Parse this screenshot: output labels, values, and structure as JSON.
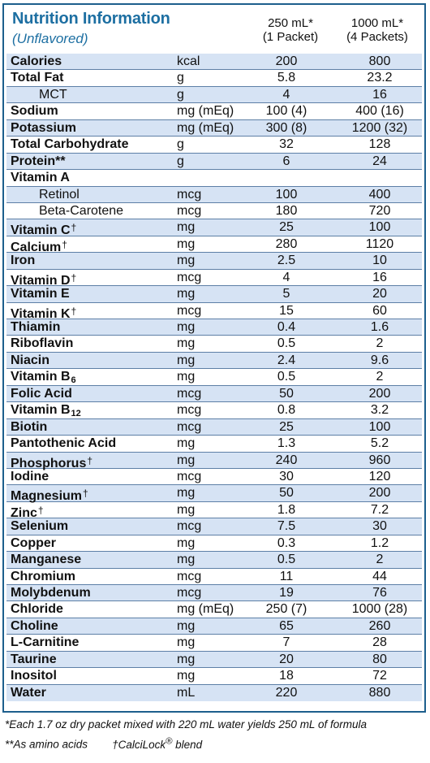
{
  "header": {
    "title": "Nutrition Information",
    "subtitle": "(Unflavored)",
    "col1_line1": "250 mL*",
    "col1_line2": "(1 Packet)",
    "col2_line1": "1000 mL*",
    "col2_line2": "(4 Packets)"
  },
  "rows": [
    {
      "name": "Calories",
      "unit": "kcal",
      "v1": "200",
      "v2": "800"
    },
    {
      "name": "Total Fat",
      "unit": "g",
      "v1": "5.8",
      "v2": "23.2"
    },
    {
      "name": "MCT",
      "unit": "g",
      "v1": "4",
      "v2": "16",
      "indent": true
    },
    {
      "name": "Sodium",
      "unit": "mg (mEq)",
      "v1": "100 (4)",
      "v2": "400 (16)"
    },
    {
      "name": "Potassium",
      "unit": "mg (mEq)",
      "v1": "300 (8)",
      "v2": "1200 (32)"
    },
    {
      "name": "Total Carbohydrate",
      "unit": "g",
      "v1": "32",
      "v2": "128"
    },
    {
      "name": "Protein**",
      "unit": "g",
      "v1": "6",
      "v2": "24"
    },
    {
      "name": "Vitamin A",
      "unit": "",
      "v1": "",
      "v2": ""
    },
    {
      "name": "Retinol",
      "unit": "mcg",
      "v1": "100",
      "v2": "400",
      "indent": true
    },
    {
      "name": "Beta-Carotene",
      "unit": "mcg",
      "v1": "180",
      "v2": "720",
      "indent": true
    },
    {
      "name": "Vitamin C",
      "dagger": "†",
      "unit": "mg",
      "v1": "25",
      "v2": "100"
    },
    {
      "name": "Calcium",
      "dagger": "†",
      "unit": "mg",
      "v1": "280",
      "v2": "1120"
    },
    {
      "name": "Iron",
      "unit": "mg",
      "v1": "2.5",
      "v2": "10"
    },
    {
      "name": "Vitamin D",
      "dagger": "†",
      "unit": "mcg",
      "v1": "4",
      "v2": "16"
    },
    {
      "name": "Vitamin E",
      "unit": "mg",
      "v1": "5",
      "v2": "20"
    },
    {
      "name": "Vitamin K",
      "dagger": "†",
      "unit": "mcg",
      "v1": "15",
      "v2": "60"
    },
    {
      "name": "Thiamin",
      "unit": "mg",
      "v1": "0.4",
      "v2": "1.6"
    },
    {
      "name": "Riboflavin",
      "unit": "mg",
      "v1": "0.5",
      "v2": "2"
    },
    {
      "name": "Niacin",
      "unit": "mg",
      "v1": "2.4",
      "v2": "9.6"
    },
    {
      "name": "Vitamin B",
      "sub": "6",
      "unit": "mg",
      "v1": "0.5",
      "v2": "2"
    },
    {
      "name": "Folic Acid",
      "unit": "mcg",
      "v1": "50",
      "v2": "200"
    },
    {
      "name": "Vitamin B",
      "sub": "12",
      "unit": "mcg",
      "v1": "0.8",
      "v2": "3.2"
    },
    {
      "name": "Biotin",
      "unit": "mcg",
      "v1": "25",
      "v2": "100"
    },
    {
      "name": "Pantothenic Acid",
      "unit": "mg",
      "v1": "1.3",
      "v2": "5.2"
    },
    {
      "name": "Phosphorus",
      "dagger": "†",
      "unit": "mg",
      "v1": "240",
      "v2": "960"
    },
    {
      "name": "Iodine",
      "unit": "mcg",
      "v1": "30",
      "v2": "120"
    },
    {
      "name": "Magnesium",
      "dagger": "†",
      "unit": "mg",
      "v1": "50",
      "v2": "200"
    },
    {
      "name": "Zinc",
      "dagger": "†",
      "unit": "mg",
      "v1": "1.8",
      "v2": "7.2"
    },
    {
      "name": "Selenium",
      "unit": "mcg",
      "v1": "7.5",
      "v2": "30"
    },
    {
      "name": "Copper",
      "unit": "mg",
      "v1": "0.3",
      "v2": "1.2"
    },
    {
      "name": "Manganese",
      "unit": "mg",
      "v1": "0.5",
      "v2": "2"
    },
    {
      "name": "Chromium",
      "unit": "mcg",
      "v1": "11",
      "v2": "44"
    },
    {
      "name": "Molybdenum",
      "unit": "mcg",
      "v1": "19",
      "v2": "76"
    },
    {
      "name": "Chloride",
      "unit": "mg (mEq)",
      "v1": "250 (7)",
      "v2": "1000 (28)"
    },
    {
      "name": "Choline",
      "unit": "mg",
      "v1": "65",
      "v2": "260"
    },
    {
      "name": "L-Carnitine",
      "unit": "mg",
      "v1": "7",
      "v2": "28"
    },
    {
      "name": "Taurine",
      "unit": "mg",
      "v1": "20",
      "v2": "80"
    },
    {
      "name": "Inositol",
      "unit": "mg",
      "v1": "18",
      "v2": "72"
    },
    {
      "name": "Water",
      "unit": "mL",
      "v1": "220",
      "v2": "880"
    }
  ],
  "footnotes": {
    "line1": "*Each 1.7 oz dry packet mixed with 220 mL water yields 250 mL of formula",
    "line2a": "**As amino acids",
    "line2b_prefix": "†CalciLock",
    "line2b_reg": "®",
    "line2b_suffix": " blend"
  },
  "colors": {
    "accent": "#1d6fa2",
    "border": "#1d5f8d",
    "shade": "#d6e3f4",
    "rule": "#5d7fa6"
  }
}
